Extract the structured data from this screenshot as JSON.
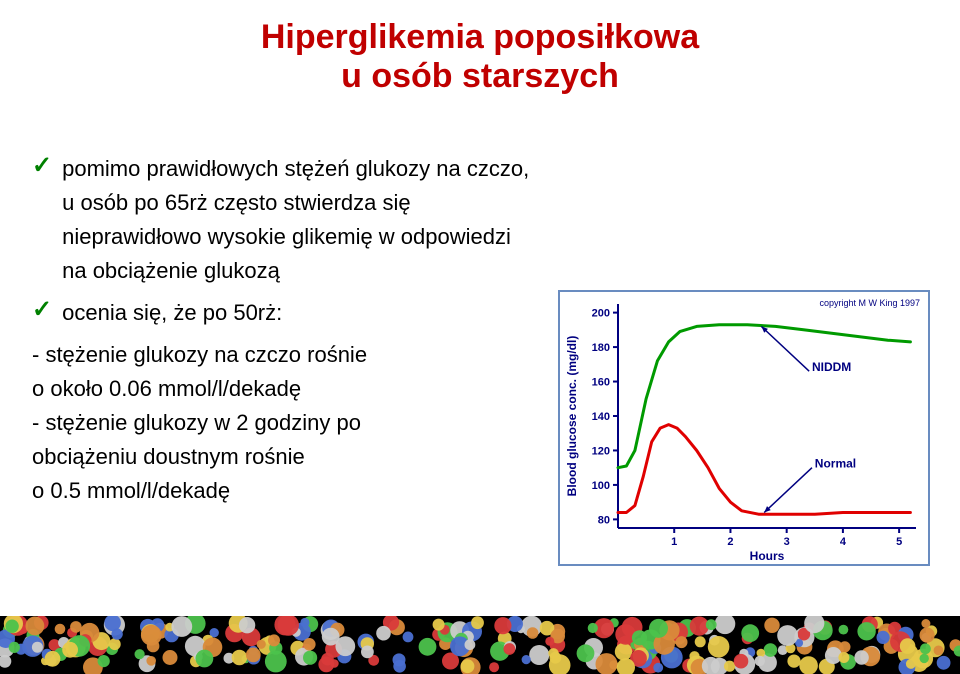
{
  "title_line1": "Hiperglikemia poposiłkowa",
  "title_line2": "u osób starszych",
  "title_color": "#c00000",
  "title_fontsize": 34,
  "bullets": {
    "b1": "pomimo prawidłowych stężeń glukozy na czczo, u osób po 65rż często stwierdza się nieprawidłowo wysokie glikemię w odpowiedzi na obciążenie glukozą",
    "b2": "ocenia się, że po 50rż:",
    "s1": "- stężenie glukozy na czczo rośnie",
    "s2": "o około 0.06 mmol/l/dekadę",
    "s3": "- stężenie glukozy w 2 godziny po",
    "s4": "obciążeniu doustnym rośnie",
    "s5": "o 0.5 mmol/l/dekadę"
  },
  "chart": {
    "type": "line",
    "copyright": "copyright M W King 1997",
    "xlabel": "Hours",
    "ylabel": "Blood glucose conc. (mg/dl)",
    "axis_color": "#000080",
    "label_fontsize": 12,
    "tick_fontsize": 11,
    "line_width": 3,
    "x_ticks": [
      1,
      2,
      3,
      4,
      5
    ],
    "y_ticks": [
      80,
      100,
      120,
      140,
      160,
      180,
      200
    ],
    "xlim": [
      0,
      5.3
    ],
    "ylim": [
      75,
      205
    ],
    "series": [
      {
        "name": "NIDDM",
        "color": "#009a00",
        "label_x": 3.45,
        "label_y": 166,
        "data": [
          [
            0.0,
            110
          ],
          [
            0.15,
            111
          ],
          [
            0.3,
            120
          ],
          [
            0.5,
            150
          ],
          [
            0.7,
            172
          ],
          [
            0.9,
            183
          ],
          [
            1.1,
            189
          ],
          [
            1.4,
            192
          ],
          [
            1.8,
            193
          ],
          [
            2.3,
            193
          ],
          [
            2.8,
            192
          ],
          [
            3.3,
            190
          ],
          [
            3.8,
            188
          ],
          [
            4.3,
            186
          ],
          [
            4.8,
            184
          ],
          [
            5.2,
            183
          ]
        ]
      },
      {
        "name": "Normal",
        "color": "#e00000",
        "label_x": 3.5,
        "label_y": 110,
        "data": [
          [
            0.0,
            84
          ],
          [
            0.15,
            84
          ],
          [
            0.3,
            88
          ],
          [
            0.45,
            105
          ],
          [
            0.6,
            125
          ],
          [
            0.75,
            133
          ],
          [
            0.9,
            135
          ],
          [
            1.05,
            133
          ],
          [
            1.2,
            128
          ],
          [
            1.4,
            120
          ],
          [
            1.6,
            110
          ],
          [
            1.8,
            98
          ],
          [
            2.0,
            90
          ],
          [
            2.2,
            85
          ],
          [
            2.5,
            83
          ],
          [
            3.0,
            83
          ],
          [
            3.5,
            83
          ],
          [
            4.0,
            84
          ],
          [
            4.5,
            84
          ],
          [
            5.0,
            84
          ],
          [
            5.2,
            84
          ]
        ]
      }
    ],
    "arrows": [
      {
        "from": [
          3.4,
          166
        ],
        "to": [
          2.55,
          192
        ],
        "color": "#000080"
      },
      {
        "from": [
          3.45,
          110
        ],
        "to": [
          2.6,
          84
        ],
        "color": "#000080"
      }
    ]
  }
}
